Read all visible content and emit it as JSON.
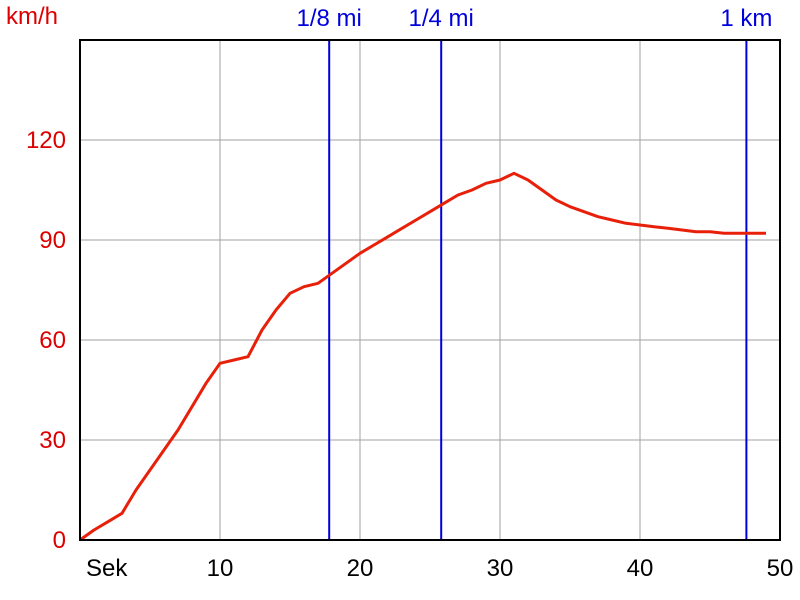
{
  "chart_data": {
    "type": "line",
    "ylabel": "km/h",
    "xlabel": "Sek",
    "xlim": [
      0,
      50
    ],
    "ylim": [
      0,
      150
    ],
    "x_ticks": [
      10,
      20,
      30,
      40,
      50
    ],
    "y_ticks": [
      0,
      30,
      60,
      90,
      120
    ],
    "grid": true,
    "colors": {
      "series": "#e8200a",
      "y_axis_text": "#dd0000",
      "markers": "#0000dd",
      "grid": "#a0a0a0",
      "frame": "#000000"
    },
    "series": [
      {
        "x": [
          0,
          1,
          2,
          3,
          4,
          5,
          6,
          7,
          8,
          9,
          10,
          11,
          12,
          13,
          14,
          15,
          16,
          17,
          18,
          19,
          20,
          21,
          22,
          23,
          24,
          25,
          26,
          27,
          28,
          29,
          30,
          31,
          32,
          33,
          34,
          35,
          36,
          37,
          38,
          39,
          40,
          41,
          42,
          43,
          44,
          45,
          46,
          47,
          48,
          49
        ],
        "y": [
          0,
          3,
          5.5,
          8,
          15,
          21,
          27,
          33,
          40,
          47,
          53,
          54,
          55,
          63,
          69,
          74,
          76,
          77,
          80,
          83,
          86,
          88.5,
          91,
          93.5,
          96,
          98.5,
          101,
          103.5,
          105,
          107,
          108,
          110,
          108,
          105,
          102,
          100,
          98.5,
          97,
          96,
          95,
          94.5,
          94,
          93.5,
          93,
          92.5,
          92.5,
          92,
          92,
          92,
          92
        ]
      }
    ],
    "markers": [
      {
        "label": "1/8 mi",
        "x": 17.8
      },
      {
        "label": "1/4 mi",
        "x": 25.8
      },
      {
        "label": "1 km",
        "x": 47.6
      }
    ]
  }
}
